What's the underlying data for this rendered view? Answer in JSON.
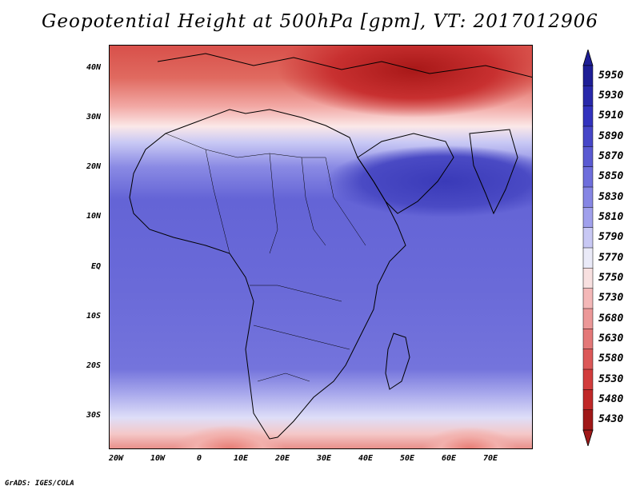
{
  "title": "Geopotential Height at 500hPa [gpm], VT: 2017012906",
  "footer": "GrADS: IGES/COLA",
  "map": {
    "lat_labels": [
      "40N",
      "30N",
      "20N",
      "10N",
      "EQ",
      "10S",
      "20S",
      "30S"
    ],
    "lon_labels": [
      "20W",
      "10W",
      "0",
      "10E",
      "20E",
      "30E",
      "40E",
      "50E",
      "60E",
      "70E"
    ],
    "extent": {
      "lon": [
        -22,
        80
      ],
      "lat": [
        -36,
        45
      ]
    },
    "variable": "Geopotential Height at 500hPa",
    "units": "gpm",
    "valid_time": "2017012906"
  },
  "colorbar": {
    "levels": [
      "5950",
      "5930",
      "5910",
      "5890",
      "5870",
      "5850",
      "5830",
      "5810",
      "5790",
      "5770",
      "5750",
      "5730",
      "5680",
      "5630",
      "5580",
      "5530",
      "5480",
      "5430"
    ],
    "colors": [
      "#1e1e96",
      "#2828aa",
      "#3232be",
      "#4646c8",
      "#5a5ad2",
      "#6e6edc",
      "#8686e4",
      "#a0a0ec",
      "#c8c8f4",
      "#eaeaf8",
      "#f8e0e0",
      "#f4b8b8",
      "#ec9898",
      "#e47878",
      "#dc5858",
      "#d23c3c",
      "#c02828",
      "#a01818"
    ]
  }
}
